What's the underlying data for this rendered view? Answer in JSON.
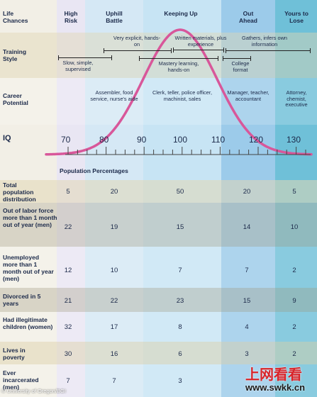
{
  "columns": {
    "life_chances_label": "Life Chances",
    "high_risk": "High Risk",
    "uphill_battle": "Uphill Battle",
    "keeping_up": "Keeping Up",
    "out_ahead": "Out Ahead",
    "yours_to_lose": "Yours to Lose"
  },
  "training": {
    "label": "Training Style",
    "slow": "Slow, simple, supervised",
    "explicit": "Very explicit, hands-on",
    "written": "Written materials, plus experience",
    "gathers": "Gathers, infers own information",
    "mastery": "Mastery learning, hands-on",
    "college": "College format"
  },
  "career": {
    "label": "Career Potential",
    "c1": "Assembler, food service, nurse's aide",
    "c2": "Clerk, teller, police officer, machinist, sales",
    "c3": "Manager, teacher, accountant",
    "c4": "Attorney, chemist, executive"
  },
  "iq": {
    "label": "IQ",
    "ticks": [
      "70",
      "80",
      "90",
      "100",
      "110",
      "120",
      "130"
    ]
  },
  "population_title": "Population Percentages",
  "rows": [
    {
      "label": "Total population distribution",
      "values": [
        "5",
        "20",
        "50",
        "20",
        "5"
      ]
    },
    {
      "label": "Out of labor force more than 1 month out of year (men)",
      "values": [
        "22",
        "19",
        "15",
        "14",
        "10"
      ]
    },
    {
      "label": "Unemployed more than 1 month out of year (men)",
      "values": [
        "12",
        "10",
        "7",
        "7",
        "2"
      ]
    },
    {
      "label": "Divorced in 5 years",
      "values": [
        "21",
        "22",
        "23",
        "15",
        "9"
      ]
    },
    {
      "label": "Had illegitimate children (women)",
      "values": [
        "32",
        "17",
        "8",
        "4",
        "2"
      ]
    },
    {
      "label": "Lives in poverty",
      "values": [
        "30",
        "16",
        "6",
        "3",
        "2"
      ]
    },
    {
      "label": "Ever incarcerated (men)",
      "values": [
        "7",
        "7",
        "3",
        "",
        ""
      ]
    }
  ],
  "credit": "© University of Oregon/BGI",
  "watermark": {
    "cn": "上网看看",
    "url": "www.swkk.cn"
  },
  "colors": {
    "curve": "#d8579a",
    "high_risk_band": "#e9e6f3",
    "uphill_band": "#d5e8f5",
    "keeping_band": "#c7e4f4",
    "out_ahead_band": "#9ccbea",
    "yours_band": "#6fc0d8",
    "watermark_red": "#d8242a"
  }
}
